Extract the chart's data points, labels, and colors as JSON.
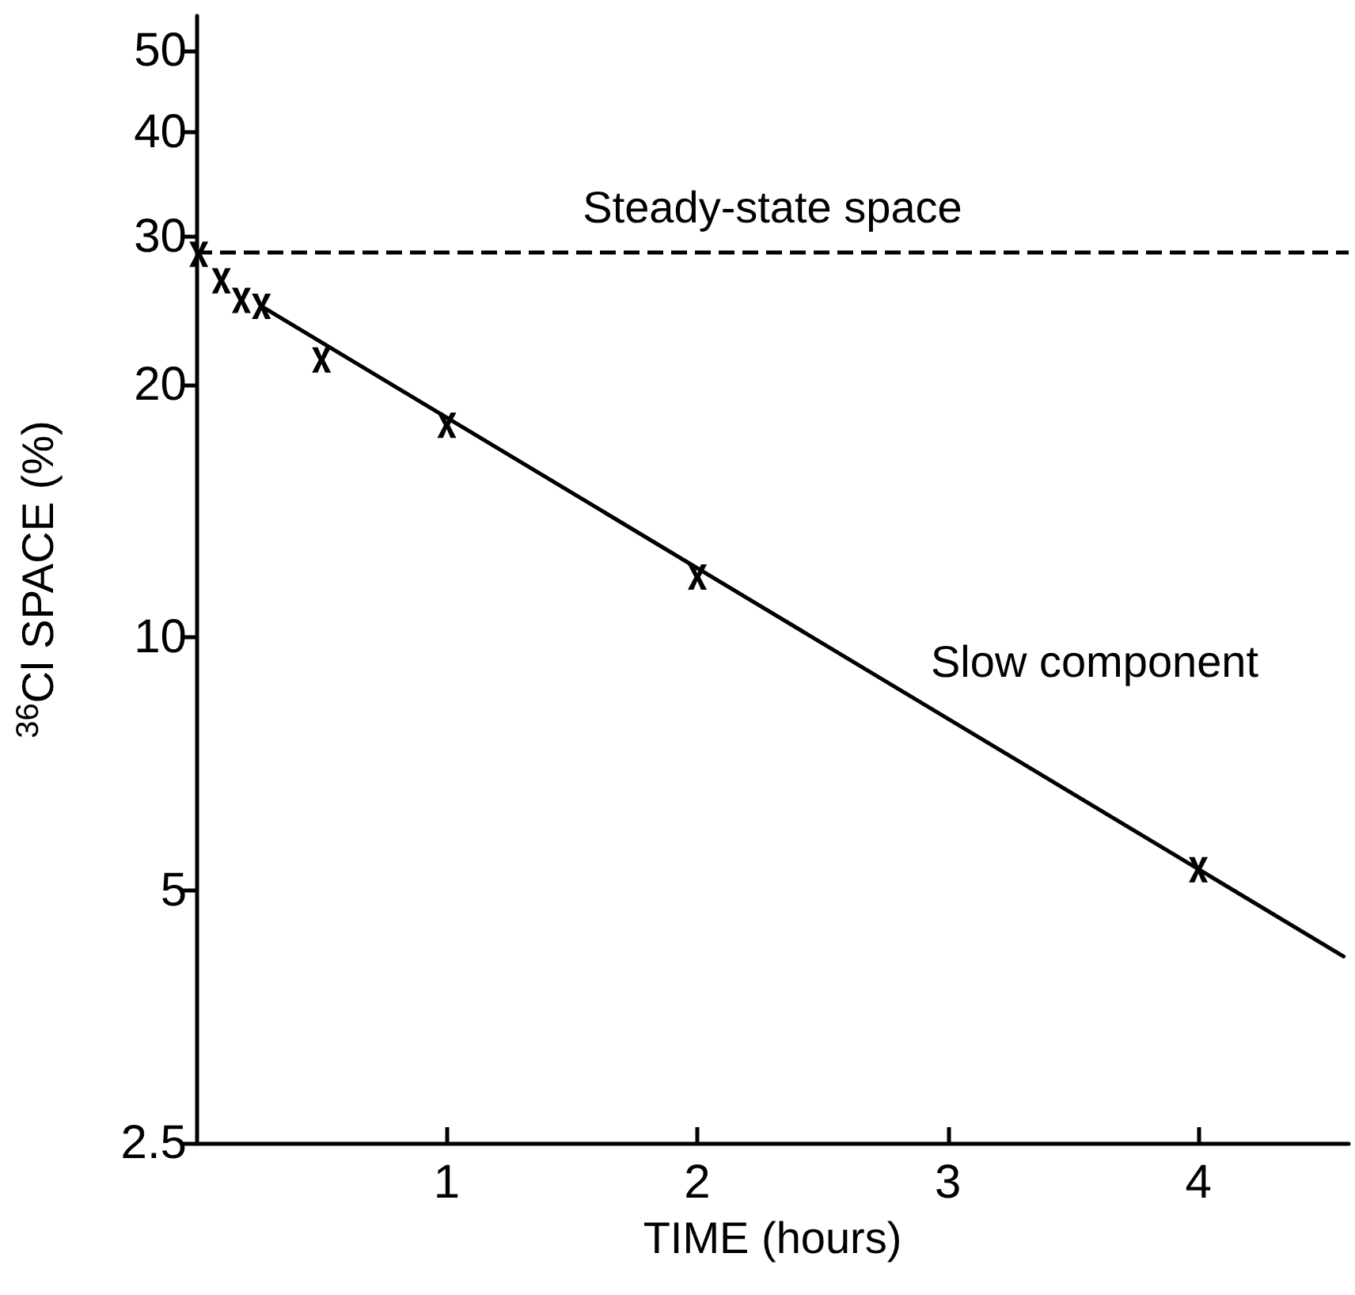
{
  "chart_data": {
    "type": "scatter",
    "xlabel": "TIME (hours)",
    "ylabel": "$^{36}$Cl SPACE (%)",
    "xlim": [
      0,
      4.6
    ],
    "xticks": [
      1,
      2,
      3,
      4
    ],
    "ylim": [
      2.5,
      55
    ],
    "yticks": [
      2.5,
      5,
      10,
      20,
      30,
      40,
      50
    ],
    "log": "y",
    "grid": false,
    "series": [
      {
        "marker": "cross",
        "color": "#000000",
        "x": [
          0.01,
          0.1,
          0.18,
          0.26,
          0.5,
          1,
          2,
          4
        ],
        "values": [
          28.6,
          26.6,
          25.2,
          24.8,
          21.4,
          17.9,
          11.8,
          5.29
        ]
      },
      {
        "type": "line",
        "marker": "none",
        "line_style": "solid",
        "color": "#000000",
        "x": [
          0.26,
          4.58
        ],
        "values": [
          24.8,
          4.17
        ]
      }
    ],
    "ref_lines": [
      {
        "axis": "y",
        "value": 28.8,
        "label": "Steady-state space",
        "line_style": "dashed",
        "color": "#000000"
      }
    ],
    "annotations": [
      "Slow component"
    ]
  }
}
